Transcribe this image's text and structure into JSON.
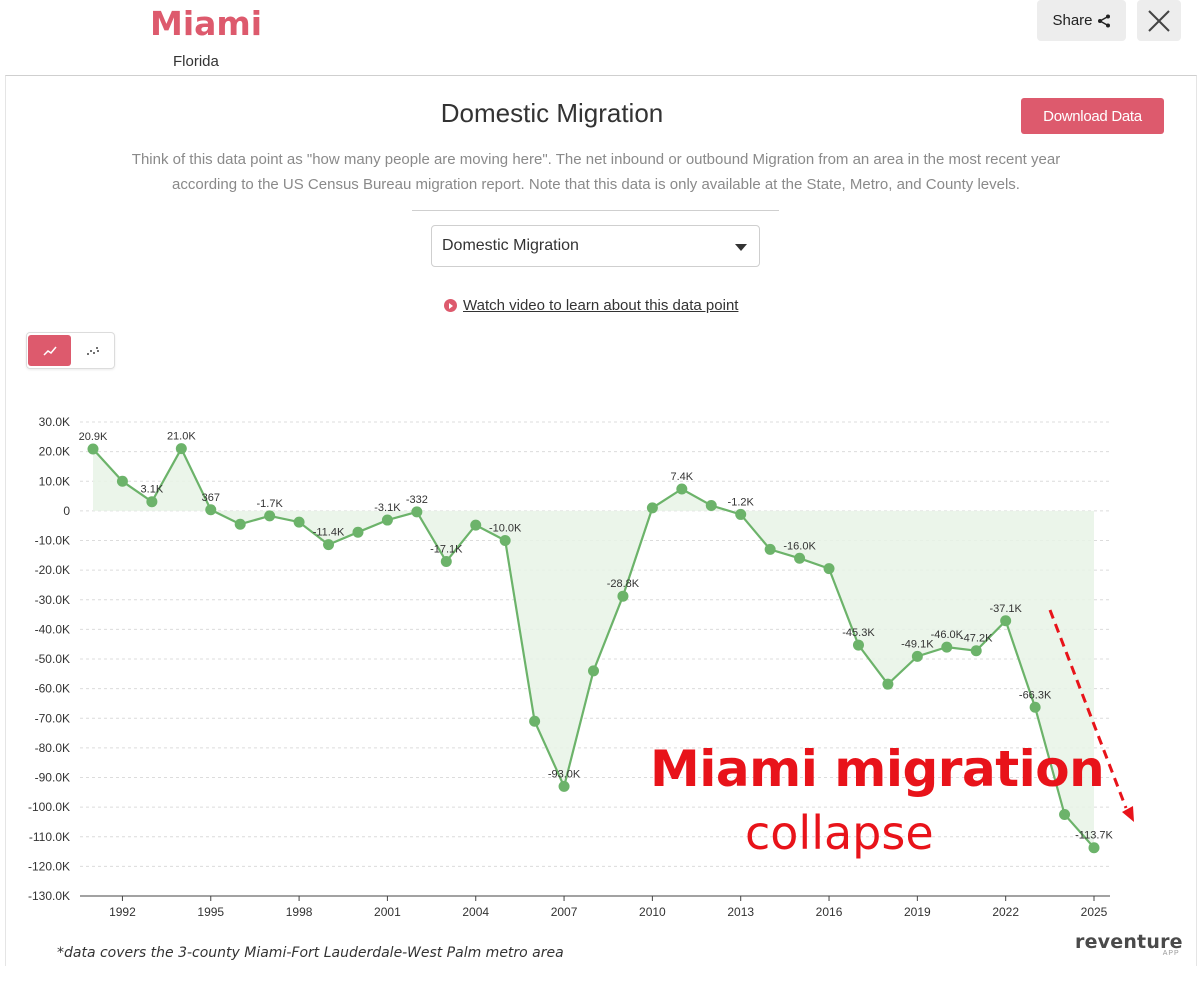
{
  "header": {
    "city": "Miami",
    "state": "Florida",
    "share_label": "Share"
  },
  "panel": {
    "title": "Domestic Migration",
    "download_label": "Download Data",
    "description_line1": "Think of this data point as \"how many people are moving here\". The net inbound or outbound Migration from an area in the most recent year",
    "description_line2": "according to the US Census Bureau migration report. Note that this data is only available at the State, Metro, and County levels.",
    "select_value": "Domestic Migration",
    "video_link": "Watch video to learn about this data point"
  },
  "annotation": {
    "headline": "Miami migration",
    "subline": "collapse"
  },
  "footnote": "*data covers the 3-county Miami-Fort Lauderdale-West Palm metro area",
  "logo": {
    "main": "reventure",
    "sub": "APP"
  },
  "colors": {
    "accent": "#dd5a6d",
    "line": "#6cb36a",
    "marker": "#6cb36a",
    "area": "#e8f3e6",
    "annotation": "#e8131a"
  },
  "chart_data": {
    "type": "area",
    "x": [
      1991,
      1992,
      1993,
      1994,
      1995,
      1996,
      1997,
      1998,
      1999,
      2000,
      2001,
      2002,
      2003,
      2004,
      2005,
      2006,
      2007,
      2008,
      2009,
      2010,
      2011,
      2012,
      2013,
      2014,
      2015,
      2016,
      2017,
      2018,
      2019,
      2020,
      2021,
      2022,
      2023,
      2024,
      2025
    ],
    "series": [
      {
        "values": [
          20.9,
          10.0,
          3.1,
          21.0,
          0.367,
          -4.5,
          -1.7,
          -3.8,
          -11.4,
          -7.2,
          -3.1,
          -0.332,
          -17.1,
          -4.8,
          -10.0,
          -71.0,
          -93.0,
          -54.0,
          -28.8,
          1.0,
          7.4,
          1.8,
          -1.2,
          -13.0,
          -16.0,
          -19.5,
          -45.3,
          -58.5,
          -49.1,
          -46.0,
          -47.2,
          -37.1,
          -66.3,
          -102.5,
          -113.7
        ]
      }
    ],
    "data_labels": [
      {
        "x": 1991,
        "text": "20.9K"
      },
      {
        "x": 1993,
        "text": "3.1K"
      },
      {
        "x": 1994,
        "text": "21.0K"
      },
      {
        "x": 1995,
        "text": "367"
      },
      {
        "x": 1997,
        "text": "-1.7K"
      },
      {
        "x": 1999,
        "text": "-11.4K"
      },
      {
        "x": 2001,
        "text": "-3.1K"
      },
      {
        "x": 2002,
        "text": "-332"
      },
      {
        "x": 2003,
        "text": "-17.1K"
      },
      {
        "x": 2005,
        "text": "-10.0K"
      },
      {
        "x": 2007,
        "text": "-93.0K"
      },
      {
        "x": 2009,
        "text": "-28.8K"
      },
      {
        "x": 2011,
        "text": "7.4K"
      },
      {
        "x": 2013,
        "text": "-1.2K"
      },
      {
        "x": 2015,
        "text": "-16.0K"
      },
      {
        "x": 2017,
        "text": "-45.3K"
      },
      {
        "x": 2019,
        "text": "-49.1K"
      },
      {
        "x": 2020,
        "text": "-46.0K"
      },
      {
        "x": 2021,
        "text": "-47.2K"
      },
      {
        "x": 2022,
        "text": "-37.1K"
      },
      {
        "x": 2023,
        "text": "-66.3K"
      },
      {
        "x": 2025,
        "text": "-113.7K"
      }
    ],
    "x_ticks": [
      1992,
      1995,
      1998,
      2001,
      2004,
      2007,
      2010,
      2013,
      2016,
      2019,
      2022,
      2025
    ],
    "y_ticks": [
      30,
      20,
      10,
      0,
      -10,
      -20,
      -30,
      -40,
      -50,
      -60,
      -70,
      -80,
      -90,
      -100,
      -110,
      -120,
      -130
    ],
    "y_tick_labels": [
      "30.0K",
      "20.0K",
      "10.0K",
      "0",
      "-10.0K",
      "-20.0K",
      "-30.0K",
      "-40.0K",
      "-50.0K",
      "-60.0K",
      "-70.0K",
      "-80.0K",
      "-90.0K",
      "-100.0K",
      "-110.0K",
      "-120.0K",
      "-130.0K"
    ],
    "ylim": [
      -130,
      30
    ],
    "xlim": [
      1991,
      2025
    ],
    "grid": true,
    "legend": "none"
  }
}
